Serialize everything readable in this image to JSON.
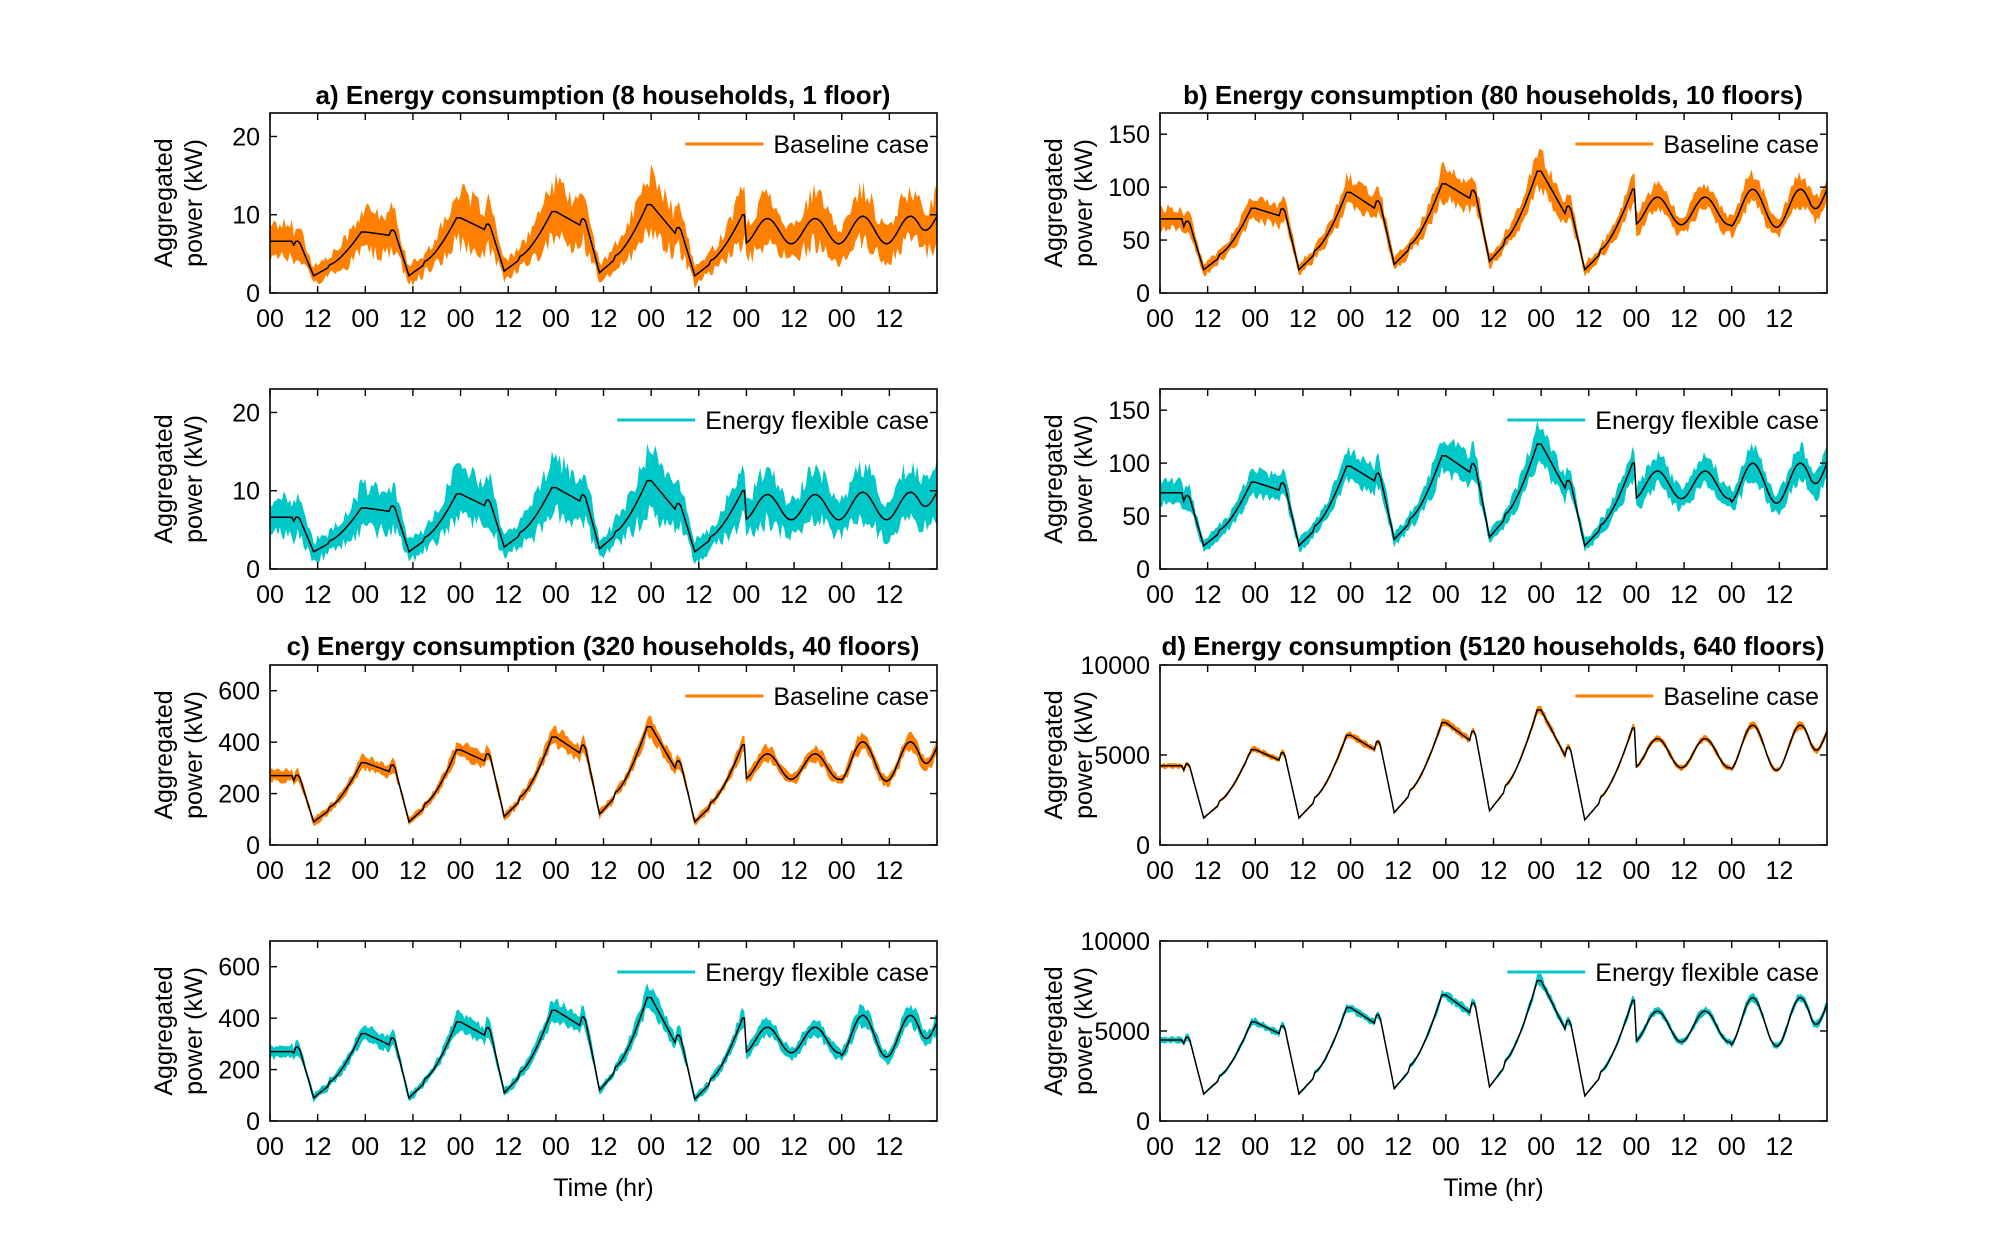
{
  "figure": {
    "band_colors": {
      "baseline": "#FF8000",
      "flexible": "#00C8C8"
    },
    "mean_color": "#000000"
  },
  "chart_data": [
    {
      "id": "a-baseline",
      "type": "area",
      "title": "a) Energy consumption (8 households, 1 floor)",
      "ylabel": [
        "Aggregated",
        "power (kW)"
      ],
      "xlabel": "",
      "legend": "Baseline case",
      "legend_position": "top-right",
      "band": "baseline",
      "xlim": [
        0,
        168
      ],
      "ylim": [
        0,
        23
      ],
      "yticks": [
        0,
        10,
        20
      ],
      "xticks": [
        0,
        12,
        24,
        36,
        48,
        60,
        72,
        84,
        96,
        108,
        120,
        132,
        144,
        156
      ],
      "xticklabels": [
        "00",
        "12",
        "00",
        "12",
        "00",
        "12",
        "00",
        "12",
        "00",
        "12",
        "00",
        "12",
        "00",
        "12"
      ],
      "profile": {
        "peaks": [
          7.8,
          9.6,
          10.4,
          11.3,
          10.0,
          9.7,
          10.0
        ],
        "troughs": [
          2.2,
          2.2,
          2.8,
          2.6,
          2.2,
          6.1,
          6.1
        ],
        "start": 6.6,
        "end": 9.8,
        "rel_halfwidth": 0.33,
        "min_halfwidth": 1.2
      }
    },
    {
      "id": "a-flexible",
      "type": "area",
      "title": "",
      "ylabel": [
        "Aggregated",
        "power (kW)"
      ],
      "xlabel": "",
      "legend": "Energy flexible case",
      "legend_position": "top-right",
      "band": "flexible",
      "xlim": [
        0,
        168
      ],
      "ylim": [
        0,
        23
      ],
      "yticks": [
        0,
        10,
        20
      ],
      "xticks": [
        0,
        12,
        24,
        36,
        48,
        60,
        72,
        84,
        96,
        108,
        120,
        132,
        144,
        156
      ],
      "xticklabels": [
        "00",
        "12",
        "00",
        "12",
        "00",
        "12",
        "00",
        "12",
        "00",
        "12",
        "00",
        "12",
        "00",
        "12"
      ],
      "profile": {
        "peaks": [
          7.8,
          9.6,
          10.4,
          11.3,
          10.0,
          9.7,
          10.0
        ],
        "troughs": [
          2.2,
          2.2,
          2.8,
          2.6,
          2.2,
          6.1,
          6.1
        ],
        "start": 6.6,
        "end": 9.8,
        "rel_halfwidth": 0.35,
        "min_halfwidth": 1.3
      }
    },
    {
      "id": "b-baseline",
      "type": "area",
      "title": "b) Energy consumption (80 households, 10 floors)",
      "ylabel": [
        "Aggregated",
        "power (kW)"
      ],
      "xlabel": "",
      "legend": "Baseline case",
      "legend_position": "top-right",
      "band": "baseline",
      "xlim": [
        0,
        168
      ],
      "ylim": [
        0,
        170
      ],
      "yticks": [
        0,
        50,
        100,
        150
      ],
      "xticks": [
        0,
        12,
        24,
        36,
        48,
        60,
        72,
        84,
        96,
        108,
        120,
        132,
        144,
        156
      ],
      "xticklabels": [
        "00",
        "12",
        "00",
        "12",
        "00",
        "12",
        "00",
        "12",
        "00",
        "12",
        "00",
        "12",
        "00",
        "12"
      ],
      "profile": {
        "peaks": [
          80,
          95,
          103,
          115,
          98,
          92,
          100
        ],
        "troughs": [
          22,
          22,
          27,
          30,
          22,
          63,
          60
        ],
        "start": 70,
        "end": 98,
        "rel_halfwidth": 0.14,
        "min_halfwidth": 6
      }
    },
    {
      "id": "b-flexible",
      "type": "area",
      "title": "",
      "ylabel": [
        "Aggregated",
        "power (kW)"
      ],
      "xlabel": "",
      "legend": "Energy flexible case",
      "legend_position": "top-right",
      "band": "flexible",
      "xlim": [
        0,
        168
      ],
      "ylim": [
        0,
        170
      ],
      "yticks": [
        0,
        50,
        100,
        150
      ],
      "xticks": [
        0,
        12,
        24,
        36,
        48,
        60,
        72,
        84,
        96,
        108,
        120,
        132,
        144,
        156
      ],
      "xticklabels": [
        "00",
        "12",
        "00",
        "12",
        "00",
        "12",
        "00",
        "12",
        "00",
        "12",
        "00",
        "12",
        "00",
        "12"
      ],
      "profile": {
        "peaks": [
          82,
          97,
          107,
          118,
          100,
          94,
          102
        ],
        "troughs": [
          22,
          22,
          28,
          30,
          22,
          65,
          60
        ],
        "start": 72,
        "end": 100,
        "rel_halfwidth": 0.15,
        "min_halfwidth": 6
      }
    },
    {
      "id": "c-baseline",
      "type": "area",
      "title": "c) Energy consumption (320 households, 40 floors)",
      "ylabel": [
        "Aggregated",
        "power (kW)"
      ],
      "xlabel": "",
      "legend": "Baseline case",
      "legend_position": "top-right",
      "band": "baseline",
      "xlim": [
        0,
        168
      ],
      "ylim": [
        0,
        700
      ],
      "yticks": [
        0,
        200,
        400,
        600
      ],
      "xticks": [
        0,
        12,
        24,
        36,
        48,
        60,
        72,
        84,
        96,
        108,
        120,
        132,
        144,
        156
      ],
      "xticklabels": [
        "00",
        "12",
        "00",
        "12",
        "00",
        "12",
        "00",
        "12",
        "00",
        "12",
        "00",
        "12",
        "00",
        "12"
      ],
      "profile": {
        "peaks": [
          320,
          370,
          420,
          460,
          390,
          360,
          410
        ],
        "troughs": [
          90,
          90,
          110,
          120,
          90,
          250,
          240
        ],
        "start": 270,
        "end": 380,
        "rel_halfwidth": 0.08,
        "min_halfwidth": 15
      }
    },
    {
      "id": "c-flexible",
      "type": "area",
      "title": "",
      "ylabel": [
        "Aggregated",
        "power (kW)"
      ],
      "xlabel": "Time (hr)",
      "legend": "Energy flexible case",
      "legend_position": "top-right",
      "band": "flexible",
      "xlim": [
        0,
        168
      ],
      "ylim": [
        0,
        700
      ],
      "yticks": [
        0,
        200,
        400,
        600
      ],
      "xticks": [
        0,
        12,
        24,
        36,
        48,
        60,
        72,
        84,
        96,
        108,
        120,
        132,
        144,
        156
      ],
      "xticklabels": [
        "00",
        "12",
        "00",
        "12",
        "00",
        "12",
        "00",
        "12",
        "00",
        "12",
        "00",
        "12",
        "00",
        "12"
      ],
      "profile": {
        "peaks": [
          340,
          385,
          430,
          480,
          400,
          370,
          420
        ],
        "troughs": [
          90,
          90,
          110,
          120,
          85,
          260,
          240
        ],
        "start": 270,
        "end": 385,
        "rel_halfwidth": 0.09,
        "min_halfwidth": 16
      }
    },
    {
      "id": "d-baseline",
      "type": "area",
      "title": "d) Energy consumption (5120 households, 640 floors)",
      "ylabel": [
        "Aggregated",
        "power (kW)"
      ],
      "xlabel": "",
      "legend": "Baseline case",
      "legend_position": "top-right",
      "band": "baseline",
      "xlim": [
        0,
        168
      ],
      "ylim": [
        0,
        10000
      ],
      "yticks": [
        0,
        5000,
        10000
      ],
      "xticks": [
        0,
        12,
        24,
        36,
        48,
        60,
        72,
        84,
        96,
        108,
        120,
        132,
        144,
        156
      ],
      "xticklabels": [
        "00",
        "12",
        "00",
        "12",
        "00",
        "12",
        "00",
        "12",
        "00",
        "12",
        "00",
        "12",
        "00",
        "12"
      ],
      "profile": {
        "peaks": [
          5300,
          6100,
          6800,
          7500,
          6500,
          6000,
          6800
        ],
        "troughs": [
          1500,
          1500,
          1800,
          1900,
          1400,
          4200,
          4000
        ],
        "start": 4400,
        "end": 6300,
        "rel_halfwidth": 0.03,
        "min_halfwidth": 60
      }
    },
    {
      "id": "d-flexible",
      "type": "area",
      "title": "",
      "ylabel": [
        "Aggregated",
        "power (kW)"
      ],
      "xlabel": "Time (hr)",
      "legend": "Energy flexible case",
      "legend_position": "top-right",
      "band": "flexible",
      "xlim": [
        0,
        168
      ],
      "ylim": [
        0,
        10000
      ],
      "yticks": [
        0,
        5000,
        10000
      ],
      "xticks": [
        0,
        12,
        24,
        36,
        48,
        60,
        72,
        84,
        96,
        108,
        120,
        132,
        144,
        156
      ],
      "xticklabels": [
        "00",
        "12",
        "00",
        "12",
        "00",
        "12",
        "00",
        "12",
        "00",
        "12",
        "00",
        "12",
        "00",
        "12"
      ],
      "profile": {
        "peaks": [
          5500,
          6300,
          7000,
          7800,
          6700,
          6200,
          7000
        ],
        "troughs": [
          1500,
          1500,
          1800,
          1900,
          1400,
          4300,
          4000
        ],
        "start": 4500,
        "end": 6500,
        "rel_halfwidth": 0.035,
        "min_halfwidth": 70
      }
    }
  ]
}
